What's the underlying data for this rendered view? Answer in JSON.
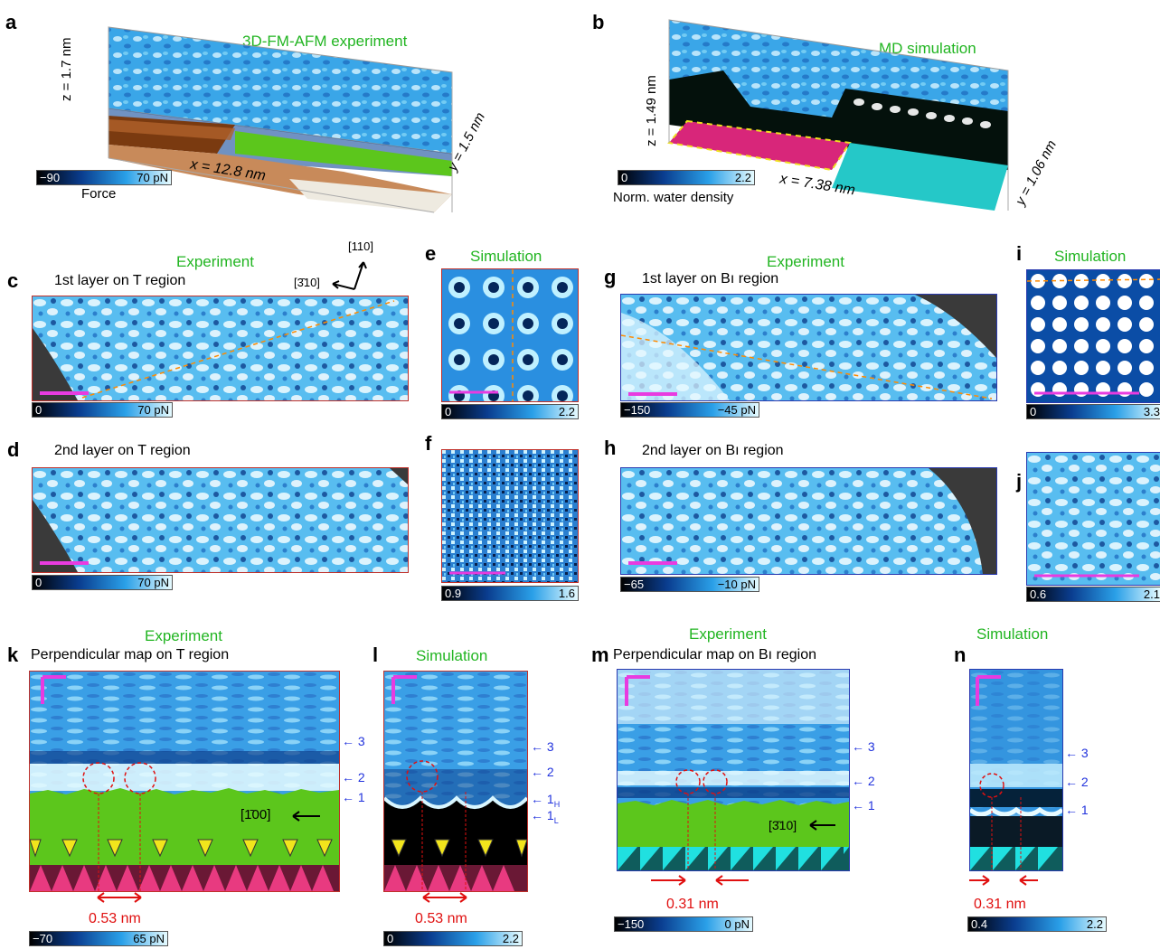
{
  "panels": {
    "a": {
      "letter": "a",
      "title": "3D-FM-AFM experiment",
      "z_label": "z = 1.7 nm",
      "x_label": "x = 12.8 nm",
      "y_label": "y = 1.5 nm",
      "cbar_min": "−90",
      "cbar_max": "70 pN",
      "cbar_caption": "Force"
    },
    "b": {
      "letter": "b",
      "title": "MD simulation",
      "z_label": "z = 1.49 nm",
      "x_label": "x = 7.38 nm",
      "y_label": "y = 1.06 nm",
      "cbar_min": "0",
      "cbar_max": "2.2",
      "cbar_caption": "Norm. water density"
    },
    "c": {
      "letter": "c",
      "heading": "Experiment",
      "subtitle": "1st layer on T region",
      "dir1": "[110]",
      "dir2": "[3̄10]",
      "cbar_min": "0",
      "cbar_max": "70 pN"
    },
    "d": {
      "letter": "d",
      "subtitle": "2nd layer on T region",
      "cbar_min": "0",
      "cbar_max": "70 pN"
    },
    "e": {
      "letter": "e",
      "heading": "Simulation",
      "cbar_min": "0",
      "cbar_max": "2.2"
    },
    "f": {
      "letter": "f",
      "cbar_min": "0.9",
      "cbar_max": "1.6"
    },
    "g": {
      "letter": "g",
      "heading": "Experiment",
      "subtitle": "1st layer on Bı region",
      "cbar_min": "−150",
      "cbar_max": "−45 pN"
    },
    "h": {
      "letter": "h",
      "subtitle": "2nd layer on Bı region",
      "cbar_min": "−65",
      "cbar_max": "−10 pN"
    },
    "i": {
      "letter": "i",
      "heading": "Simulation",
      "cbar_min": "0",
      "cbar_max": "3.3"
    },
    "j": {
      "letter": "j",
      "cbar_min": "0.6",
      "cbar_max": "2.1"
    },
    "k": {
      "letter": "k",
      "heading": "Experiment",
      "subtitle": "Perpendicular map on T region",
      "direction": "[1̄00]",
      "layers": [
        "3",
        "2",
        "1"
      ],
      "distance": "0.53 nm",
      "cbar_min": "−70",
      "cbar_max": "65 pN"
    },
    "l": {
      "letter": "l",
      "heading": "Simulation",
      "layers": [
        "3",
        "2",
        "1",
        "1"
      ],
      "subs": [
        "H",
        "L"
      ],
      "distance": "0.53 nm",
      "cbar_min": "0",
      "cbar_max": "2.2"
    },
    "m": {
      "letter": "m",
      "heading": "Experiment",
      "subtitle": "Perpendicular map on Bı region",
      "direction": "[3̄10]",
      "layers": [
        "3",
        "2",
        "1"
      ],
      "distance": "0.31 nm",
      "cbar_min": "−150",
      "cbar_max": "0 pN"
    },
    "n": {
      "letter": "n",
      "heading": "Simulation",
      "layers": [
        "3",
        "2",
        "1"
      ],
      "distance": "0.31 nm",
      "cbar_min": "0.4",
      "cbar_max": "2.2"
    }
  },
  "colors": {
    "accent_green": "#22b522",
    "scale_magenta": "#e83be0",
    "arrow_blue": "#2233dd",
    "marker_red": "#e01010",
    "frame_red": "#c0302a",
    "frame_blue": "#2a3ab0",
    "substrate_green": "#5cc61c"
  }
}
